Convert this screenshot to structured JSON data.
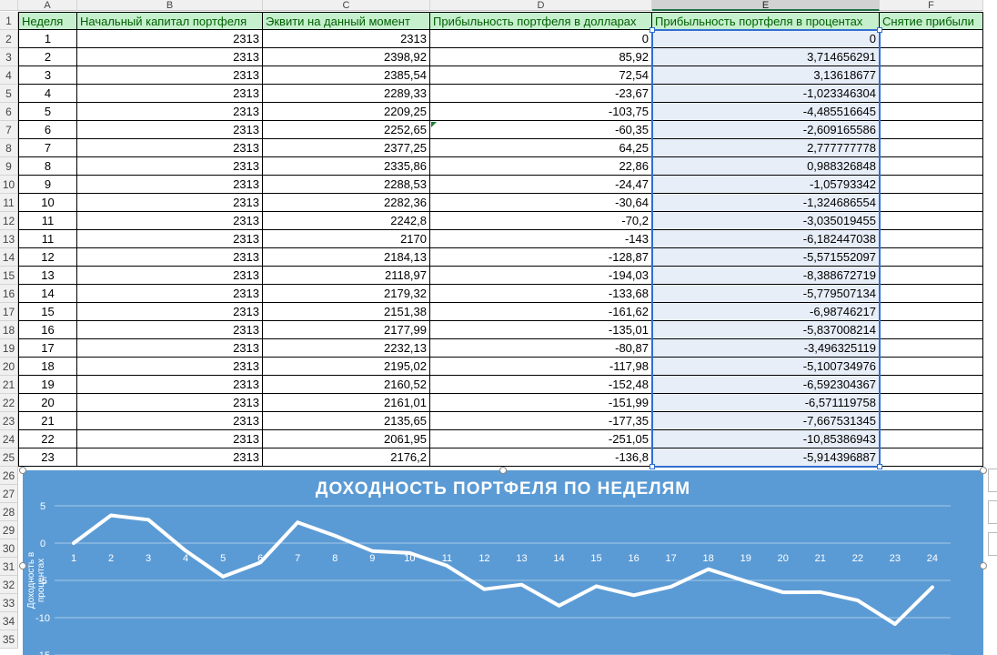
{
  "columns": [
    "A",
    "B",
    "C",
    "D",
    "E",
    "F"
  ],
  "headers": [
    "Неделя",
    "Начальный капитал портфеля",
    "Эквити на данный момент",
    "Прибыльность портфеля в долларах",
    "Прибыльность портфеля в процентах",
    "Снятие прибыли"
  ],
  "rows": [
    [
      "1",
      "2313",
      "2313",
      "0",
      "0",
      ""
    ],
    [
      "2",
      "2313",
      "2398,92",
      "85,92",
      "3,714656291",
      ""
    ],
    [
      "3",
      "2313",
      "2385,54",
      "72,54",
      "3,13618677",
      ""
    ],
    [
      "4",
      "2313",
      "2289,33",
      "-23,67",
      "-1,023346304",
      ""
    ],
    [
      "5",
      "2313",
      "2209,25",
      "-103,75",
      "-4,485516645",
      ""
    ],
    [
      "6",
      "2313",
      "2252,65",
      "-60,35",
      "-2,609165586",
      ""
    ],
    [
      "7",
      "2313",
      "2377,25",
      "64,25",
      "2,777777778",
      ""
    ],
    [
      "8",
      "2313",
      "2335,86",
      "22,86",
      "0,988326848",
      ""
    ],
    [
      "9",
      "2313",
      "2288,53",
      "-24,47",
      "-1,05793342",
      ""
    ],
    [
      "10",
      "2313",
      "2282,36",
      "-30,64",
      "-1,324686554",
      ""
    ],
    [
      "11",
      "2313",
      "2242,8",
      "-70,2",
      "-3,035019455",
      ""
    ],
    [
      "11",
      "2313",
      "2170",
      "-143",
      "-6,182447038",
      ""
    ],
    [
      "12",
      "2313",
      "2184,13",
      "-128,87",
      "-5,571552097",
      ""
    ],
    [
      "13",
      "2313",
      "2118,97",
      "-194,03",
      "-8,388672719",
      ""
    ],
    [
      "14",
      "2313",
      "2179,32",
      "-133,68",
      "-5,779507134",
      ""
    ],
    [
      "15",
      "2313",
      "2151,38",
      "-161,62",
      "-6,98746217",
      ""
    ],
    [
      "16",
      "2313",
      "2177,99",
      "-135,01",
      "-5,837008214",
      ""
    ],
    [
      "17",
      "2313",
      "2232,13",
      "-80,87",
      "-3,496325119",
      ""
    ],
    [
      "18",
      "2313",
      "2195,02",
      "-117,98",
      "-5,100734976",
      ""
    ],
    [
      "19",
      "2313",
      "2160,52",
      "-152,48",
      "-6,592304367",
      ""
    ],
    [
      "20",
      "2313",
      "2161,01",
      "-151,99",
      "-6,571119758",
      ""
    ],
    [
      "21",
      "2313",
      "2135,65",
      "-177,35",
      "-7,667531345",
      ""
    ],
    [
      "22",
      "2313",
      "2061,95",
      "-251,05",
      "-10,85386943",
      ""
    ],
    [
      "23",
      "2313",
      "2176,2",
      "-136,8",
      "-5,914396887",
      ""
    ]
  ],
  "row_numbers": [
    "1",
    "2",
    "3",
    "4",
    "5",
    "6",
    "7",
    "8",
    "9",
    "10",
    "11",
    "12",
    "13",
    "14",
    "15",
    "16",
    "17",
    "18",
    "19",
    "20",
    "21",
    "22",
    "23",
    "24",
    "25",
    "26",
    "27",
    "28",
    "29",
    "30",
    "31",
    "32",
    "33",
    "34",
    "35"
  ],
  "colors": {
    "header_fill": "#c6efce",
    "header_text": "#006100",
    "chart_bg": "#5b9bd5",
    "selection": "#2f6fd0"
  },
  "chart_data": {
    "type": "line",
    "title": "ДОХОДНОСТЬ ПОРТФЕЛЯ ПО НЕДЕЛЯМ",
    "ylabel": "Доходность в процентах",
    "xlabel": "",
    "categories": [
      "1",
      "2",
      "3",
      "4",
      "5",
      "6",
      "7",
      "8",
      "9",
      "10",
      "11",
      "12",
      "13",
      "14",
      "15",
      "16",
      "17",
      "18",
      "19",
      "20",
      "21",
      "22",
      "23",
      "24"
    ],
    "series": [
      {
        "values": [
          0,
          3.714656291,
          3.13618677,
          -1.023346304,
          -4.485516645,
          -2.609165586,
          2.777777778,
          0.988326848,
          -1.05793342,
          -1.324686554,
          -3.035019455,
          -6.182447038,
          -5.571552097,
          -8.388672719,
          -5.779507134,
          -6.98746217,
          -5.837008214,
          -3.496325119,
          -5.100734976,
          -6.592304367,
          -6.571119758,
          -7.667531345,
          -10.85386943,
          -5.914396887
        ]
      }
    ],
    "yticks": [
      "5",
      "0",
      "-5",
      "-10",
      "-15"
    ],
    "ylim": [
      -15,
      5
    ],
    "grid": true
  }
}
